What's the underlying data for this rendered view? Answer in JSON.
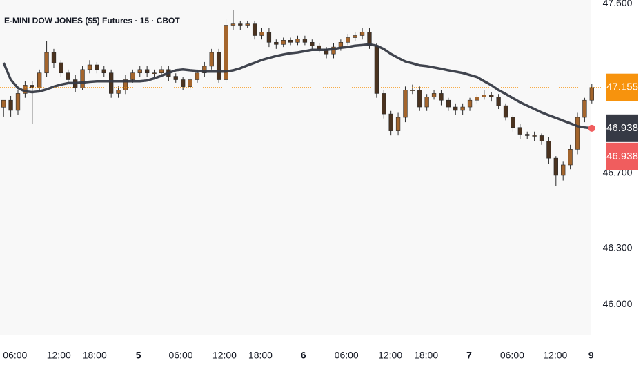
{
  "chart_data": {
    "type": "candlestick",
    "title": "E-MINI DOW JONES ($5) Futures · 15 · CBOT",
    "up_color": "#a4652c",
    "down_color": "#4a3320",
    "xlim": [
      -0.5,
      82.5
    ],
    "ylim": [
      45.84,
      47.62
    ],
    "yticks": [
      {
        "value": 46.0,
        "label": "46.000"
      },
      {
        "value": 46.3,
        "label": "46.300"
      },
      {
        "value": 46.7,
        "label": "46.700"
      },
      {
        "value": 47.6,
        "label": "47.600"
      }
    ],
    "xticks": [
      {
        "value": 1.6,
        "label": "06:00"
      },
      {
        "value": 7.7,
        "label": "12:00"
      },
      {
        "value": 12.7,
        "label": "18:00"
      },
      {
        "value": 18.8,
        "label": "5",
        "bold": true
      },
      {
        "value": 24.7,
        "label": "06:00"
      },
      {
        "value": 30.8,
        "label": "12:00"
      },
      {
        "value": 35.8,
        "label": "18:00"
      },
      {
        "value": 41.8,
        "label": "6",
        "bold": true
      },
      {
        "value": 47.8,
        "label": "06:00"
      },
      {
        "value": 53.9,
        "label": "12:00"
      },
      {
        "value": 58.9,
        "label": "18:00"
      },
      {
        "value": 64.9,
        "label": "7",
        "bold": true
      },
      {
        "value": 70.9,
        "label": "06:00"
      },
      {
        "value": 76.9,
        "label": "12:00"
      },
      {
        "value": 81.9,
        "label": "9",
        "bold": true
      }
    ],
    "open": [
      47.05,
      47.087,
      47.033,
      47.123,
      47.167,
      47.152,
      47.232,
      47.341,
      47.286,
      47.232,
      47.196,
      47.152,
      47.25,
      47.275,
      47.25,
      47.232,
      47.123,
      47.141,
      47.196,
      47.232,
      47.25,
      47.232,
      47.232,
      47.25,
      47.214,
      47.196,
      47.159,
      47.196,
      47.232,
      47.268,
      47.341,
      47.196,
      47.486,
      47.493,
      47.486,
      47.493,
      47.431,
      47.449,
      47.395,
      47.384,
      47.406,
      47.395,
      47.413,
      47.395,
      47.377,
      47.359,
      47.333,
      47.37,
      47.395,
      47.42,
      47.431,
      47.449,
      47.377,
      47.123,
      47.014,
      46.924,
      46.996,
      47.141,
      47.141,
      47.051,
      47.105,
      47.123,
      47.087,
      47.051,
      47.033,
      47.051,
      47.087,
      47.105,
      47.116,
      47.105,
      47.058,
      46.996,
      46.942,
      46.906,
      46.899,
      46.899,
      46.87,
      46.779,
      46.688,
      46.743,
      46.826,
      46.996,
      47.087
    ],
    "high": [
      47.08,
      47.11,
      47.14,
      47.19,
      47.19,
      47.25,
      47.4,
      47.36,
      47.3,
      47.25,
      47.22,
      47.27,
      47.3,
      47.29,
      47.27,
      47.25,
      47.16,
      47.22,
      47.25,
      47.27,
      47.27,
      47.25,
      47.27,
      47.27,
      47.23,
      47.21,
      47.21,
      47.25,
      47.29,
      47.36,
      47.36,
      47.52,
      47.565,
      47.51,
      47.51,
      47.51,
      47.47,
      47.47,
      47.41,
      47.42,
      47.42,
      47.43,
      47.43,
      47.41,
      47.39,
      47.37,
      47.39,
      47.41,
      47.44,
      47.45,
      47.47,
      47.47,
      47.39,
      47.14,
      47.03,
      47.02,
      47.16,
      47.17,
      47.16,
      47.12,
      47.14,
      47.14,
      47.1,
      47.07,
      47.07,
      47.1,
      47.12,
      47.14,
      47.13,
      47.12,
      47.07,
      47.01,
      46.96,
      46.92,
      46.92,
      46.91,
      46.89,
      46.79,
      46.76,
      46.85,
      47.02,
      47.1,
      47.175
    ],
    "low": [
      47.0,
      47.0,
      47.01,
      47.1,
      46.96,
      47.13,
      47.21,
      47.26,
      47.21,
      47.18,
      47.13,
      47.14,
      47.23,
      47.23,
      47.21,
      47.1,
      47.1,
      47.12,
      47.18,
      47.21,
      47.21,
      47.21,
      47.21,
      47.19,
      47.18,
      47.14,
      47.14,
      47.18,
      47.21,
      47.25,
      47.18,
      47.18,
      47.46,
      47.46,
      47.47,
      47.41,
      47.41,
      47.37,
      47.36,
      47.37,
      47.38,
      47.38,
      47.38,
      47.36,
      47.34,
      47.31,
      47.31,
      47.35,
      47.38,
      47.4,
      47.41,
      47.36,
      47.1,
      46.99,
      46.9,
      46.9,
      46.97,
      47.12,
      47.03,
      47.03,
      47.09,
      47.06,
      47.03,
      47.01,
      47.01,
      47.03,
      47.07,
      47.09,
      47.08,
      47.04,
      46.98,
      46.92,
      46.88,
      46.88,
      46.87,
      46.85,
      46.75,
      46.63,
      46.66,
      46.72,
      46.8,
      46.97,
      47.07
    ],
    "close": [
      47.087,
      47.033,
      47.123,
      47.167,
      47.152,
      47.232,
      47.341,
      47.286,
      47.232,
      47.196,
      47.152,
      47.25,
      47.275,
      47.25,
      47.232,
      47.123,
      47.141,
      47.196,
      47.232,
      47.25,
      47.232,
      47.232,
      47.25,
      47.214,
      47.196,
      47.159,
      47.196,
      47.232,
      47.268,
      47.341,
      47.196,
      47.486,
      47.493,
      47.486,
      47.493,
      47.431,
      47.449,
      47.395,
      47.384,
      47.406,
      47.395,
      47.413,
      47.395,
      47.377,
      47.359,
      47.333,
      47.37,
      47.395,
      47.42,
      47.431,
      47.449,
      47.377,
      47.123,
      47.014,
      46.924,
      46.996,
      47.141,
      47.141,
      47.051,
      47.105,
      47.123,
      47.087,
      47.051,
      47.033,
      47.051,
      47.087,
      47.105,
      47.116,
      47.105,
      47.058,
      46.996,
      46.942,
      46.906,
      46.899,
      46.899,
      46.87,
      46.779,
      46.688,
      46.743,
      46.826,
      46.996,
      47.087,
      47.155
    ],
    "moving_average": {
      "color": "#363a45",
      "values": [
        47.286,
        47.196,
        47.152,
        47.134,
        47.13,
        47.134,
        47.145,
        47.159,
        47.17,
        47.178,
        47.178,
        47.181,
        47.185,
        47.188,
        47.188,
        47.188,
        47.188,
        47.188,
        47.188,
        47.188,
        47.192,
        47.203,
        47.217,
        47.232,
        47.246,
        47.25,
        47.246,
        47.243,
        47.239,
        47.239,
        47.239,
        47.239,
        47.246,
        47.257,
        47.272,
        47.286,
        47.301,
        47.312,
        47.322,
        47.33,
        47.337,
        47.341,
        47.348,
        47.355,
        47.355,
        47.355,
        47.359,
        47.366,
        47.37,
        47.377,
        47.38,
        47.384,
        47.377,
        47.359,
        47.333,
        47.312,
        47.293,
        47.283,
        47.272,
        47.268,
        47.261,
        47.254,
        47.246,
        47.239,
        47.232,
        47.221,
        47.21,
        47.188,
        47.167,
        47.141,
        47.12,
        47.098,
        47.076,
        47.058,
        47.04,
        47.022,
        47.007,
        46.993,
        46.978,
        46.964,
        46.949,
        46.942,
        46.938
      ]
    },
    "price_labels": [
      {
        "value": 47.155,
        "label": "47.155",
        "color": "#f7930d"
      },
      {
        "value": 46.938,
        "label": "46.938",
        "color": "#363a45"
      },
      {
        "value": 46.938,
        "label": "46.938",
        "color": "#f05d5e"
      }
    ]
  }
}
